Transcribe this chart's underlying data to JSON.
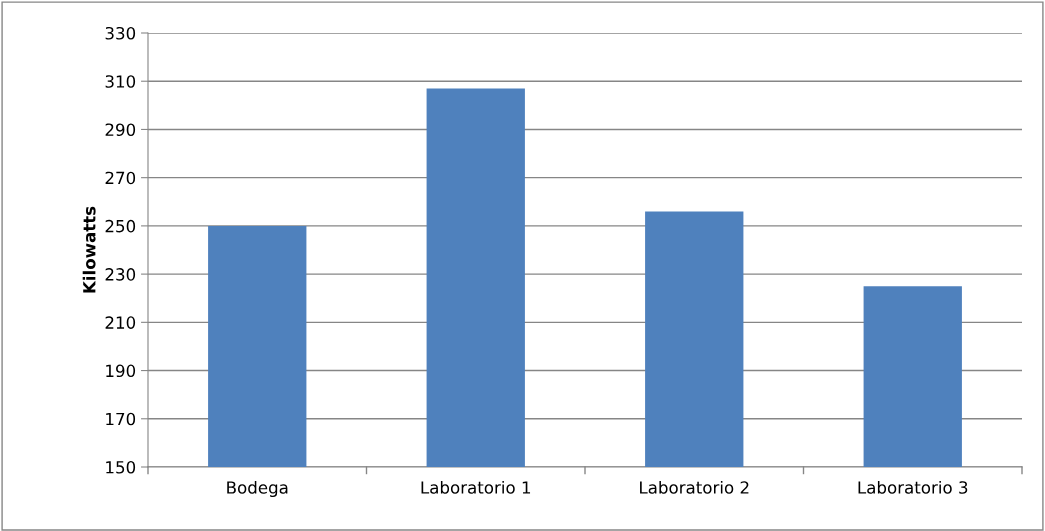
{
  "chart_data": {
    "type": "bar",
    "ylabel": "Kilowatts",
    "categories": [
      "Bodega",
      "Laboratorio 1",
      "Laboratorio 2",
      "Laboratorio 3"
    ],
    "values": [
      250,
      307,
      256,
      225
    ],
    "color": "#4f81bd",
    "ylim": [
      150,
      330
    ],
    "yticks": [
      150,
      170,
      190,
      210,
      230,
      250,
      270,
      290,
      310,
      330
    ],
    "grid": "y",
    "legend": false
  }
}
